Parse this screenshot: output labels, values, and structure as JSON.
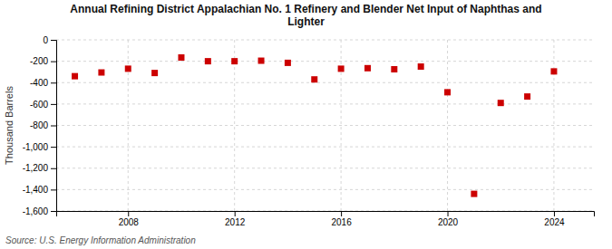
{
  "chart_data": {
    "type": "scatter",
    "title": "Annual Refining District Appalachian No. 1 Refinery and Blender Net Input of Naphthas and\nLighter",
    "ylabel": "Thousand Barrels",
    "source": "Source: U.S. Energy Information Administration",
    "x": [
      2006,
      2007,
      2008,
      2009,
      2010,
      2011,
      2012,
      2013,
      2014,
      2015,
      2016,
      2017,
      2018,
      2019,
      2020,
      2021,
      2022,
      2023,
      2024
    ],
    "values": [
      -340,
      -305,
      -270,
      -310,
      -165,
      -200,
      -200,
      -195,
      -215,
      -370,
      -270,
      -265,
      -275,
      -250,
      -490,
      -1440,
      -590,
      -530,
      -295
    ],
    "color": "#cc0000",
    "marker": "square",
    "xlim": [
      2005.3,
      2025.5
    ],
    "ylim": [
      -1600,
      0
    ],
    "xticks": [
      2008,
      2012,
      2016,
      2020,
      2024
    ],
    "yticks": [
      0,
      -200,
      -400,
      -600,
      -800,
      {
        "value": -1000,
        "label": "-1,000"
      },
      {
        "value": -1200,
        "label": "-1,200"
      },
      {
        "value": -1400,
        "label": "-1,400"
      },
      {
        "value": -1600,
        "label": "-1,600"
      }
    ],
    "grid": true
  }
}
